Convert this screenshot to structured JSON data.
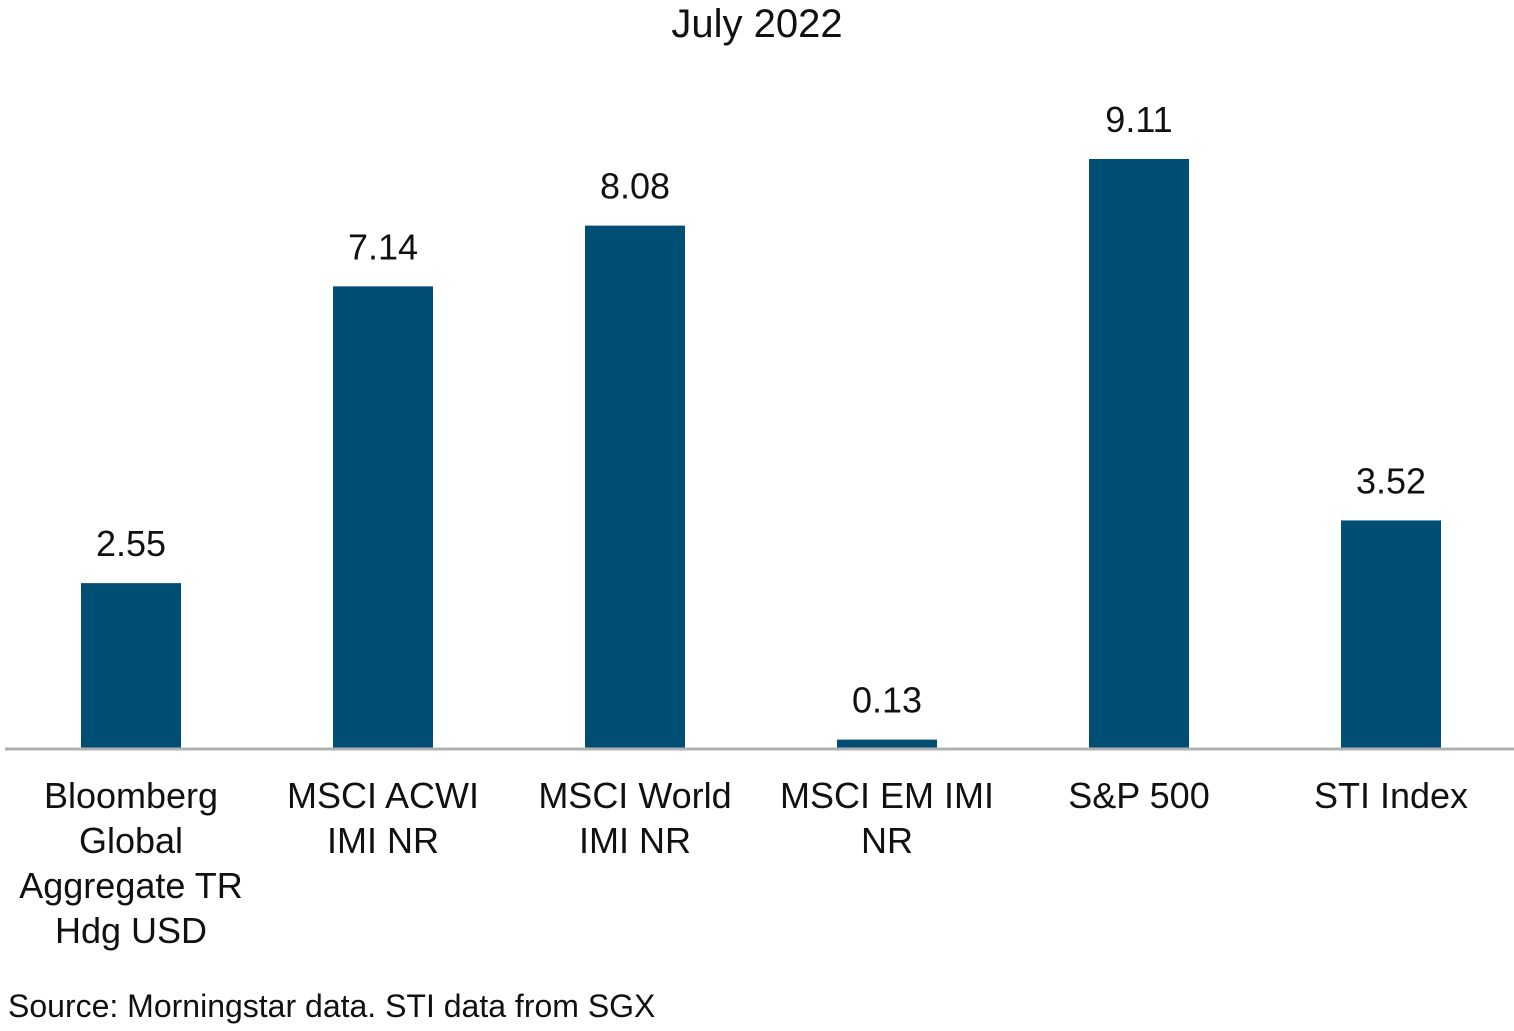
{
  "chart_data": {
    "type": "bar",
    "title": "July 2022",
    "categories": [
      "Bloomberg Global Aggregate TR Hdg USD",
      "MSCI ACWI IMI NR",
      "MSCI World IMI NR",
      "MSCI EM IMI NR",
      "S&P 500",
      "STI Index"
    ],
    "values": [
      2.55,
      7.14,
      8.08,
      0.13,
      9.11,
      3.52
    ],
    "value_labels": [
      "2.55",
      "7.14",
      "8.08",
      "0.13",
      "9.11",
      "3.52"
    ],
    "xlabel": "",
    "ylabel": "",
    "ylim": [
      0,
      10
    ],
    "grid": false,
    "legend": "none",
    "bar_color": "#004e73",
    "axis_color": "#b0b0b0"
  },
  "source": "Source: Morningstar data. STI data from SGX"
}
